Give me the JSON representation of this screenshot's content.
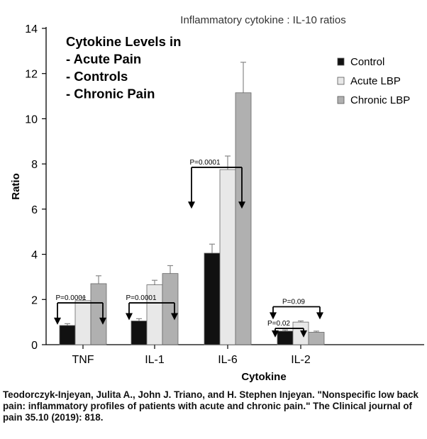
{
  "chart_data": {
    "type": "bar",
    "title": "Inflammatory cytokine : IL-10 ratios",
    "annotation_lines": [
      "Cytokine Levels in",
      "- Acute Pain",
      "- Controls",
      "- Chronic Pain"
    ],
    "xlabel": "Cytokine",
    "ylabel": "Ratio",
    "ylim": [
      0,
      14
    ],
    "yticks": [
      0,
      2,
      4,
      6,
      8,
      10,
      12,
      14
    ],
    "categories": [
      "TNF",
      "IL-1",
      "IL-6",
      "IL-2"
    ],
    "series": [
      {
        "name": "Control",
        "color": "#111111",
        "values": [
          0.85,
          1.05,
          4.05,
          0.6
        ],
        "errors": [
          0.08,
          0.1,
          0.4,
          0.05
        ]
      },
      {
        "name": "Acute LBP",
        "color": "#e8e8e8",
        "values": [
          1.95,
          2.65,
          7.75,
          1.0
        ],
        "errors": [
          0.15,
          0.2,
          0.6,
          0.05
        ]
      },
      {
        "name": "Chronic LBP",
        "color": "#b0b0b0",
        "values": [
          2.7,
          3.15,
          11.15,
          0.55
        ],
        "errors": [
          0.35,
          0.35,
          1.35,
          0.05
        ]
      }
    ],
    "legend_position": "top-right",
    "comparisons": [
      {
        "label": "P=0.0001",
        "category": "TNF"
      },
      {
        "label": "P=0.0001",
        "category": "IL-1"
      },
      {
        "label": "P=0.0001",
        "category": "IL-6"
      },
      {
        "label": "P=0.02",
        "category": "IL-2"
      },
      {
        "label": "P=0.09",
        "category": "IL-2"
      }
    ]
  },
  "citation": "Teodorczyk-Injeyan, Julita A., John J. Triano, and H. Stephen Injeyan. \"Nonspecific low back pain: inflammatory profiles of patients with acute and chronic pain.\" The Clinical journal of pain 35.10 (2019): 818."
}
